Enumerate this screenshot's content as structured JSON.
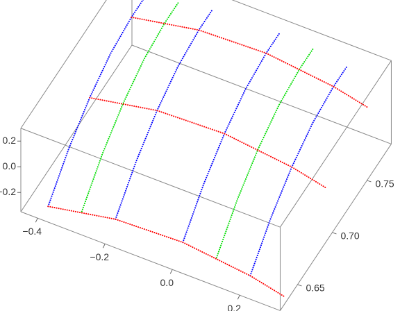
{
  "chart_data": {
    "type": "line3d",
    "xlim": [
      -0.45,
      0.32
    ],
    "ylim": [
      0.625,
      0.785
    ],
    "zlim": [
      -0.35,
      0.3
    ],
    "xticks": [
      {
        "value": -0.4,
        "label": "−0.4"
      },
      {
        "value": -0.2,
        "label": "−0.2"
      },
      {
        "value": 0,
        "label": "0.0"
      },
      0.2
    ],
    "yticks": [
      0.65,
      {
        "value": 0.7,
        "label": "0.70"
      },
      0.75
    ],
    "zticks": [
      {
        "value": -0.2,
        "label": "−0.2"
      },
      {
        "value": 0,
        "label": "0.0"
      },
      0.2
    ],
    "series": [
      {
        "color": "#0000ff",
        "x": [
          -0.4,
          -0.4,
          -0.4,
          -0.4,
          -0.4,
          -0.4
        ],
        "y": [
          0.64,
          0.67,
          0.7,
          0.73,
          0.76,
          0.78
        ],
        "z": [
          -0.38,
          -0.17,
          -0.02,
          0.08,
          0.12,
          0.12
        ]
      },
      {
        "color": "#0000ff",
        "x": [
          -0.2,
          -0.2,
          -0.2,
          -0.2,
          -0.2,
          -0.2
        ],
        "y": [
          0.64,
          0.67,
          0.7,
          0.73,
          0.76,
          0.78
        ],
        "z": [
          -0.28,
          -0.07,
          0.08,
          0.18,
          0.22,
          0.22
        ]
      },
      {
        "color": "#0000ff",
        "x": [
          0,
          0,
          0,
          0,
          0,
          0
        ],
        "y": [
          0.64,
          0.67,
          0.7,
          0.73,
          0.76,
          0.78
        ],
        "z": [
          -0.26,
          -0.05,
          0.1,
          0.2,
          0.24,
          0.24
        ]
      },
      {
        "color": "#0000ff",
        "x": [
          0.2,
          0.2,
          0.2,
          0.2,
          0.2,
          0.2
        ],
        "y": [
          0.64,
          0.67,
          0.7,
          0.73,
          0.76,
          0.78
        ],
        "z": [
          -0.32,
          -0.11,
          0.04,
          0.14,
          0.18,
          0.18
        ]
      },
      {
        "color": "#00dd00",
        "x": [
          -0.3,
          -0.3,
          -0.3,
          -0.3,
          -0.3,
          -0.3
        ],
        "y": [
          0.64,
          0.67,
          0.7,
          0.73,
          0.76,
          0.78
        ],
        "z": [
          -0.32,
          -0.11,
          0.04,
          0.14,
          0.18,
          0.18
        ]
      },
      {
        "color": "#00dd00",
        "x": [
          0.1,
          0.1,
          0.1,
          0.1,
          0.1,
          0.1
        ],
        "y": [
          0.64,
          0.67,
          0.7,
          0.73,
          0.76,
          0.78
        ],
        "z": [
          -0.28,
          -0.07,
          0.08,
          0.18,
          0.22,
          0.22
        ]
      },
      {
        "color": "#ff0000",
        "x": [
          -0.4,
          -0.2,
          0,
          0.2,
          0.3
        ],
        "y": [
          0.64,
          0.64,
          0.64,
          0.64,
          0.64
        ],
        "z": [
          -0.38,
          -0.28,
          -0.26,
          -0.32,
          -0.38
        ]
      },
      {
        "color": "#ff0000",
        "x": [
          -0.4,
          -0.2,
          0,
          0.2,
          0.3
        ],
        "y": [
          0.7,
          0.7,
          0.7,
          0.7,
          0.7
        ],
        "z": [
          -0.02,
          0.08,
          0.1,
          0.04,
          -0.02
        ]
      },
      {
        "color": "#ff0000",
        "x": [
          -0.4,
          -0.2,
          0,
          0.2,
          0.3
        ],
        "y": [
          0.76,
          0.76,
          0.76,
          0.76,
          0.76
        ],
        "z": [
          0.12,
          0.22,
          0.24,
          0.18,
          0.12
        ]
      }
    ]
  }
}
